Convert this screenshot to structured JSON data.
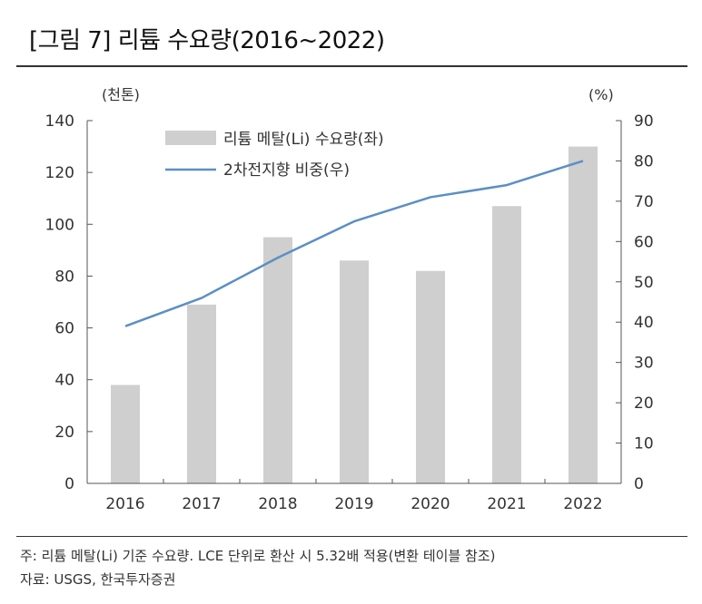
{
  "title": "[그림 7] 리튬 수요량(2016~2022)",
  "notes": {
    "note": "주: 리튬 메탈(Li) 기준 수요량. LCE 단위로 환산 시 5.32배 적용(변환 테이블 참조)",
    "source": "자료: USGS, 한국투자증권"
  },
  "colors": {
    "bar": "#cfcfcf",
    "line": "#5b8fc4",
    "axis": "#555555"
  },
  "chart_data": {
    "type": "bar",
    "categories": [
      "2016",
      "2017",
      "2018",
      "2019",
      "2020",
      "2021",
      "2022"
    ],
    "series": [
      {
        "name": "리튬 메탈(Li) 수요량(좌)",
        "type": "bar",
        "axis": "left",
        "values": [
          38,
          69,
          95,
          86,
          82,
          107,
          130
        ]
      },
      {
        "name": "2차전지향 비중(우)",
        "type": "line",
        "axis": "right",
        "values": [
          39,
          46,
          56,
          65,
          71,
          74,
          80
        ]
      }
    ],
    "left_axis": {
      "unit_label": "(천톤)",
      "ylim": [
        0,
        140
      ],
      "ticks": [
        "0",
        "20",
        "40",
        "60",
        "80",
        "100",
        "120",
        "140"
      ]
    },
    "right_axis": {
      "unit_label": "(%)",
      "ylim": [
        0,
        90
      ],
      "ticks": [
        "0",
        "10",
        "20",
        "30",
        "40",
        "50",
        "60",
        "70",
        "80",
        "90"
      ]
    },
    "legend": "top-left",
    "grid": false
  }
}
